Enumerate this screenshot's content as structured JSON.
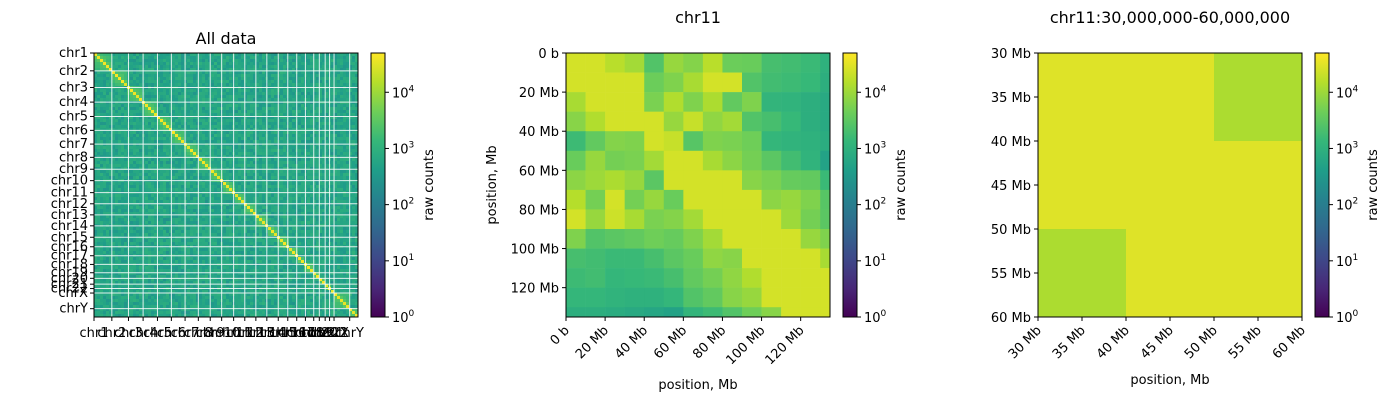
{
  "colormap": {
    "name": "viridis",
    "stops": [
      "#440154",
      "#482878",
      "#3e4989",
      "#31688e",
      "#26828e",
      "#1f9e89",
      "#35b779",
      "#6ece58",
      "#b5de2b",
      "#fde725"
    ]
  },
  "colorbar": {
    "label": "raw counts",
    "ticks": [
      {
        "value": 1,
        "base": "10",
        "exp": "0"
      },
      {
        "value": 10,
        "base": "10",
        "exp": "1"
      },
      {
        "value": 100,
        "base": "10",
        "exp": "2"
      },
      {
        "value": 1000,
        "base": "10",
        "exp": "3"
      },
      {
        "value": 10000,
        "base": "10",
        "exp": "4"
      }
    ],
    "range": [
      1,
      50000
    ],
    "scale": "log"
  },
  "chart_data": [
    {
      "type": "heatmap",
      "title": "All data",
      "xlabel": "",
      "ylabel": "",
      "scale": "log",
      "chromosomes": [
        "chr1",
        "chr2",
        "chr3",
        "chr4",
        "chr5",
        "chr6",
        "chr7",
        "chr8",
        "chr9",
        "chr10",
        "chr11",
        "chr12",
        "chr13",
        "chr14",
        "chr15",
        "chr16",
        "chr17",
        "chr18",
        "chr19",
        "chr20",
        "chr21",
        "chr22",
        "chrX",
        "chrY"
      ],
      "chromosome_sizes_mb": [
        195,
        182,
        160,
        157,
        152,
        150,
        145,
        130,
        125,
        131,
        122,
        121,
        120,
        125,
        104,
        98,
        95,
        91,
        61,
        64,
        48,
        49,
        171,
        91
      ],
      "y_tick_labels": [
        "chr1",
        "chr2",
        "chr3",
        "chr4",
        "chr5",
        "chr6",
        "chr7",
        "chr8",
        "chr9",
        "chr10",
        "chr11",
        "chr12",
        "chr13",
        "chr14",
        "chr15",
        "chr16",
        "chr17",
        "chr18",
        "chr19",
        "chr20",
        "chr21",
        "chr22",
        "chrX",
        "chrY"
      ],
      "x_tick_labels": [
        "chr1",
        "chr2",
        "chr3",
        "chr4",
        "chr5",
        "chr6",
        "chr7",
        "chr8",
        "chr9",
        "chr10",
        "chr11",
        "chr12",
        "chr13",
        "chr14",
        "chr15",
        "chr16",
        "chr17",
        "chr18",
        "chr19",
        "chr20",
        "chr21",
        "chr22",
        "chrX",
        "chrY"
      ],
      "diagonal_value": 40000,
      "background_value": 600
    },
    {
      "type": "heatmap",
      "title": "chr11",
      "xlabel": "position, Mb",
      "ylabel": "position, Mb",
      "scale": "log",
      "x_ticks": [
        "0 b",
        "20 Mb",
        "40 Mb",
        "60 Mb",
        "80 Mb",
        "100 Mb",
        "120 Mb"
      ],
      "y_ticks": [
        "0 b",
        "20 Mb",
        "40 Mb",
        "60 Mb",
        "80 Mb",
        "100 Mb",
        "120 Mb"
      ],
      "x_range_mb": [
        0,
        135
      ],
      "bin_size_mb": 10,
      "values": [
        [
          25000,
          25000,
          16000,
          11000,
          2500,
          9000,
          6500,
          16000,
          4200,
          4000,
          2000,
          1800,
          1500,
          1000
        ],
        [
          25000,
          25000,
          25000,
          25000,
          4200,
          6000,
          12000,
          25000,
          25000,
          2500,
          1800,
          1600,
          1400,
          900
        ],
        [
          12000,
          25000,
          25000,
          25000,
          5500,
          14000,
          6000,
          13000,
          3500,
          6000,
          1200,
          1100,
          900,
          700
        ],
        [
          7000,
          14000,
          25000,
          25000,
          25000,
          9000,
          20000,
          8000,
          11000,
          2500,
          2000,
          1400,
          900,
          700
        ],
        [
          1600,
          3500,
          6500,
          6000,
          25000,
          20000,
          2800,
          6000,
          5500,
          4500,
          1300,
          1100,
          1000,
          800
        ],
        [
          4000,
          9000,
          5000,
          5500,
          11000,
          25000,
          25000,
          12000,
          7500,
          5000,
          3000,
          1800,
          1100,
          500
        ],
        [
          7500,
          10000,
          13000,
          9000,
          3000,
          25000,
          25000,
          25000,
          25000,
          7000,
          5500,
          3800,
          3500,
          1500
        ],
        [
          15000,
          5000,
          25000,
          5000,
          9000,
          4000,
          25000,
          25000,
          25000,
          25000,
          7500,
          9000,
          6000,
          2800
        ],
        [
          25000,
          9000,
          22000,
          12000,
          5500,
          6500,
          11000,
          25000,
          25000,
          25000,
          25000,
          10000,
          5000,
          3000
        ],
        [
          6000,
          2500,
          3000,
          3500,
          4500,
          3800,
          6000,
          11000,
          25000,
          25000,
          25000,
          25000,
          9000,
          6000
        ],
        [
          2000,
          1800,
          1500,
          1500,
          2000,
          3000,
          4000,
          8000,
          7000,
          25000,
          25000,
          25000,
          25000,
          12000
        ],
        [
          1600,
          1800,
          1300,
          1400,
          1500,
          2000,
          3500,
          5000,
          8000,
          14000,
          25000,
          25000,
          25000,
          25000
        ],
        [
          1300,
          1300,
          1100,
          1000,
          1000,
          1300,
          2500,
          3500,
          7000,
          9000,
          25000,
          25000,
          25000,
          25000
        ],
        [
          900,
          900,
          800,
          700,
          600,
          500,
          1200,
          1600,
          2500,
          4500,
          7000,
          25000,
          25000,
          25000
        ]
      ]
    },
    {
      "type": "heatmap",
      "title": "chr11:30,000,000-60,000,000",
      "xlabel": "position, Mb",
      "ylabel": "",
      "scale": "log",
      "x_ticks": [
        "30 Mb",
        "35 Mb",
        "40 Mb",
        "45 Mb",
        "50 Mb",
        "55 Mb",
        "60 Mb"
      ],
      "y_ticks": [
        "30 Mb",
        "35 Mb",
        "40 Mb",
        "45 Mb",
        "50 Mb",
        "55 Mb",
        "60 Mb"
      ],
      "x_range_mb": [
        30,
        60
      ],
      "bin_edges_mb": [
        30,
        40,
        50,
        60
      ],
      "values": [
        [
          30000,
          30000,
          13000
        ],
        [
          30000,
          30000,
          30000
        ],
        [
          13000,
          30000,
          30000
        ]
      ]
    }
  ]
}
